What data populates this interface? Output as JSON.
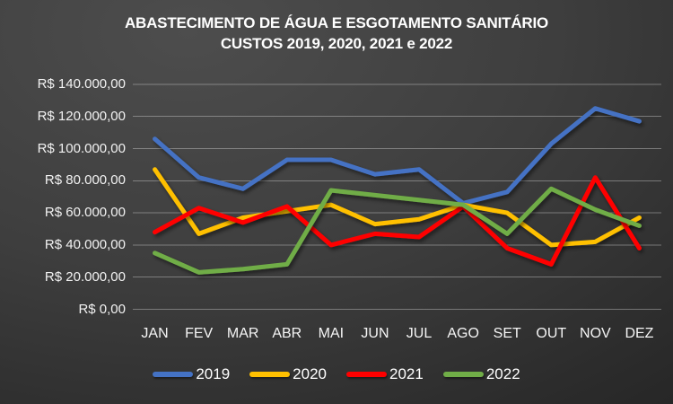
{
  "title": {
    "line1": "ABASTECIMENTO DE ÁGUA E ESGOTAMENTO SANITÁRIO",
    "line2": "CUSTOS 2019, 2020, 2021 e 2022"
  },
  "chart_data": {
    "type": "line",
    "title": "ABASTECIMENTO DE ÁGUA E ESGOTAMENTO SANITÁRIO",
    "subtitle": "CUSTOS 2019, 2020, 2021 e 2022",
    "categories": [
      "JAN",
      "FEV",
      "MAR",
      "ABR",
      "MAI",
      "JUN",
      "JUL",
      "AGO",
      "SET",
      "OUT",
      "NOV",
      "DEZ"
    ],
    "series": [
      {
        "name": "2019",
        "color": "#4472C4",
        "values": [
          106000,
          82000,
          75000,
          93000,
          93000,
          84000,
          87000,
          66000,
          73000,
          103000,
          125000,
          117000
        ]
      },
      {
        "name": "2020",
        "color": "#FFC000",
        "values": [
          87000,
          47000,
          57000,
          61000,
          65000,
          53000,
          56000,
          65000,
          60000,
          40000,
          42000,
          57000
        ]
      },
      {
        "name": "2021",
        "color": "#FF0000",
        "values": [
          48000,
          63000,
          54000,
          64000,
          40000,
          47000,
          45000,
          64000,
          38000,
          28000,
          82000,
          38000
        ]
      },
      {
        "name": "2022",
        "color": "#70AD47",
        "values": [
          35000,
          23000,
          25000,
          28000,
          74000,
          71000,
          68000,
          65000,
          47000,
          75000,
          62000,
          52000
        ]
      }
    ],
    "y_axis": {
      "min": 0,
      "max": 140000,
      "step": 20000,
      "tick_labels": [
        "R$ 0,00",
        "R$ 20.000,00",
        "R$ 40.000,00",
        "R$ 60.000,00",
        "R$ 80.000,00",
        "R$ 100.000,00",
        "R$ 120.000,00",
        "R$ 140.000,00"
      ]
    },
    "grid": "horizontal",
    "legend_position": "bottom"
  },
  "colors": {
    "background": "#3e3e3e",
    "text": "#ffffff",
    "gridline": "#dedede",
    "series_2019": "#4472C4",
    "series_2020": "#FFC000",
    "series_2021": "#FF0000",
    "series_2022": "#70AD47"
  }
}
